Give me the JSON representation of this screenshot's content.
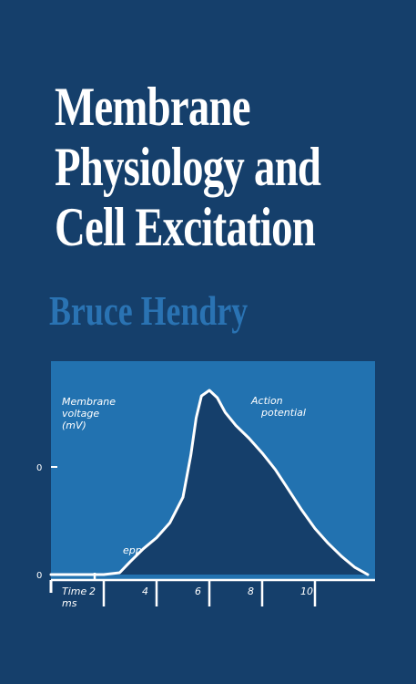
{
  "cover": {
    "title_lines": [
      "Membrane",
      "Physiology and",
      "Cell Excitation"
    ],
    "author": "Bruce Hendry",
    "colors": {
      "background": "#153f6b",
      "chart_panel": "#2272b0",
      "title": "#ffffff",
      "author": "#2a73b3"
    }
  },
  "chart_data": {
    "type": "line",
    "ylabel_lines": [
      "Membrane",
      "voltage",
      "(mV)"
    ],
    "xlabel_lines": [
      "Time",
      "ms"
    ],
    "y_ticks": [
      "0",
      "0"
    ],
    "x_ticks": [
      "2",
      "4",
      "6",
      "8",
      "10"
    ],
    "annotations": {
      "action_lines": [
        "Action",
        "potential"
      ],
      "epp": "epp"
    },
    "series": [
      {
        "x": [
          0,
          1,
          2,
          2.6,
          3,
          3.5,
          4,
          4.5,
          5,
          5.3,
          5.5,
          5.7,
          6,
          6.3,
          6.6,
          7,
          7.5,
          8,
          8.5,
          9,
          9.5,
          10,
          10.5,
          11,
          11.5,
          12
        ],
        "y": [
          0.0,
          0.0,
          0.0,
          0.01,
          0.07,
          0.14,
          0.2,
          0.28,
          0.42,
          0.65,
          0.85,
          0.97,
          1.0,
          0.96,
          0.88,
          0.81,
          0.74,
          0.66,
          0.57,
          0.46,
          0.35,
          0.25,
          0.17,
          0.1,
          0.04,
          0.0
        ]
      }
    ]
  }
}
